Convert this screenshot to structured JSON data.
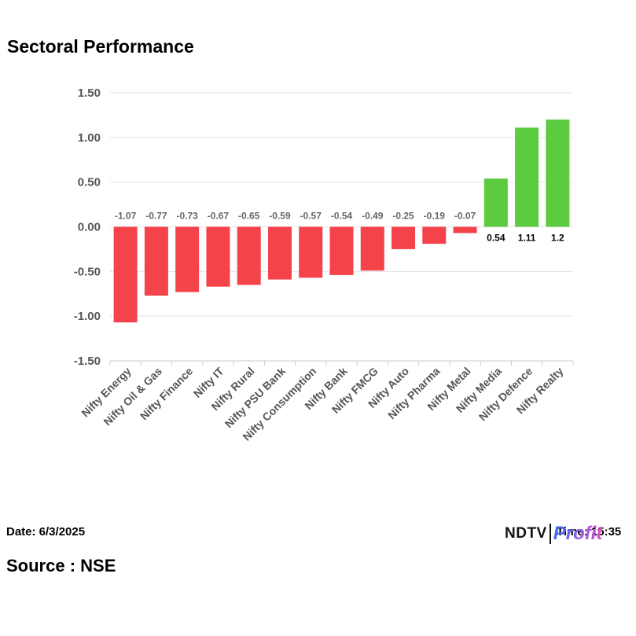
{
  "chart_data": {
    "type": "bar",
    "title": "Sectoral Performance",
    "categories": [
      "Nifty Energy",
      "Nifty Oil & Gas",
      "Nifty Finance",
      "Nifty IT",
      "Nifty Rural",
      "Nifty PSU Bank",
      "Nifty Consumption",
      "Nifty Bank",
      "Nifty FMCG",
      "Nifty Auto",
      "Nifty Pharma",
      "Nifty Metal",
      "Nifty Media",
      "Nifty Defence",
      "Nifty Realty"
    ],
    "values": [
      -1.07,
      -0.77,
      -0.73,
      -0.67,
      -0.65,
      -0.59,
      -0.57,
      -0.54,
      -0.49,
      -0.25,
      -0.19,
      -0.07,
      0.54,
      1.11,
      1.2
    ],
    "value_labels": [
      "-1.07",
      "-0.77",
      "-0.73",
      "-0.67",
      "-0.65",
      "-0.59",
      "-0.57",
      "-0.54",
      "-0.49",
      "-0.25",
      "-0.19",
      "-0.07",
      "0.54",
      "1.11",
      "1.2"
    ],
    "yticks": [
      1.5,
      1.0,
      0.5,
      0.0,
      -0.5,
      -1.0,
      -1.5
    ],
    "ytick_labels": [
      "1.50",
      "1.00",
      "0.50",
      "0.00",
      "-0.50",
      "-1.00",
      "-1.50"
    ],
    "ylim": [
      -1.5,
      1.5
    ],
    "xlabel": "",
    "ylabel": "",
    "grid": true,
    "colors": {
      "negative": "#f5434b",
      "positive": "#5ccb3f",
      "grid": "#e3e3e3",
      "tick_text": "#555555",
      "neg_label": "#666666",
      "pos_label": "#000000"
    }
  },
  "footer": {
    "date": "Date: 6/3/2025",
    "time": "Time: 15:35",
    "logo_ndtv": "NDTV",
    "logo_profit": "Profit",
    "source": "Source : NSE"
  }
}
